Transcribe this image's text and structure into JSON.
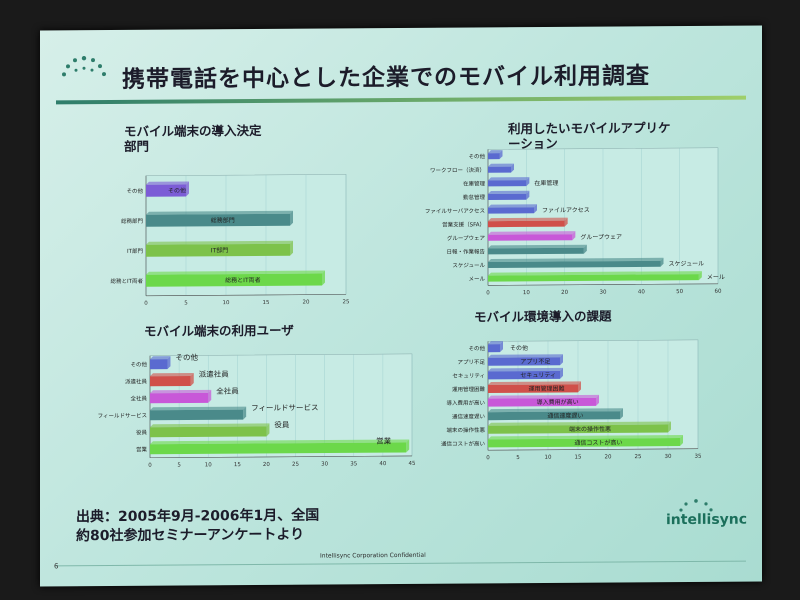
{
  "slide": {
    "title": "携帯電話を中心とした企業でのモバイル利用調査",
    "source_line1": "出典：2005年9月-2006年1月、全国",
    "source_line2": "約80社参加セミナーアンケートより",
    "brand": "intellisync",
    "footer": "Intellisync Corporation Confidential",
    "page_number": "6"
  },
  "chart_data": [
    {
      "type": "bar",
      "orientation": "horizontal",
      "title_line1": "モバイル端末の導入決定",
      "title_line2": "部門",
      "categories": [
        "その他",
        "総務部門",
        "IT部門",
        "総務とIT両者"
      ],
      "category_labels": [
        "その他",
        "総務部門",
        "IT部門",
        "総務とIT両者"
      ],
      "values": [
        5,
        18,
        18,
        22
      ],
      "colors": [
        "#7c5cd6",
        "#4a8a8a",
        "#7dc24a",
        "#6cd84a"
      ],
      "xlim": [
        0,
        25
      ],
      "xticks": [
        "0",
        "5",
        "10",
        "15",
        "20",
        "25"
      ]
    },
    {
      "type": "bar",
      "orientation": "horizontal",
      "title_line1": "利用したいモバイルアプリケ",
      "title_line2": "ーション",
      "categories": [
        "その他",
        "ワークフロー（決済）",
        "在庫管理",
        "勤怠管理",
        "ファイルサーバアクセス",
        "営業支援（SFA）",
        "グループウェア",
        "日報・作業報告",
        "スケジュール",
        "メール"
      ],
      "category_labels": [
        "",
        "",
        "在庫管理",
        "",
        "ファイルアクセス",
        "",
        "グループウェア",
        "",
        "スケジュール",
        "メール"
      ],
      "values": [
        3,
        6,
        10,
        10,
        12,
        20,
        22,
        25,
        45,
        55
      ],
      "colors": [
        "#5a6ad0",
        "#5a6ad0",
        "#5a6ad0",
        "#5a6ad0",
        "#5a6ad0",
        "#d0504a",
        "#c858d8",
        "#4a8a8a",
        "#4a8a8a",
        "#6cd84a"
      ],
      "xlim": [
        0,
        60
      ],
      "xticks": [
        "0",
        "10",
        "20",
        "30",
        "40",
        "50",
        "60"
      ]
    },
    {
      "type": "bar",
      "orientation": "horizontal",
      "title_line1": "モバイル端末の利用ユーザ",
      "title_line2": "",
      "categories": [
        "その他",
        "派遣社員",
        "全社員",
        "フィールドサービス",
        "役員",
        "営業"
      ],
      "category_labels": [
        "その他",
        "派遣社員",
        "全社員",
        "フィールドサービス",
        "役員",
        "営業"
      ],
      "values": [
        3,
        7,
        10,
        16,
        20,
        44
      ],
      "colors": [
        "#5a6ad0",
        "#d0504a",
        "#c858d8",
        "#4a8a8a",
        "#7dc24a",
        "#6cd84a"
      ],
      "xlim": [
        0,
        45
      ],
      "xticks": [
        "0",
        "5",
        "10",
        "15",
        "20",
        "25",
        "30",
        "35",
        "40",
        "45"
      ]
    },
    {
      "type": "bar",
      "orientation": "horizontal",
      "title_line1": "モバイル環境導入の課題",
      "title_line2": "",
      "categories": [
        "その他",
        "アプリ不足",
        "セキュリティ",
        "運用管理困難",
        "導入費用が高い",
        "通信速度遅い",
        "端末の操作性悪",
        "通信コストが高い"
      ],
      "category_labels": [
        "その他",
        "アプリ不足",
        "セキュリティ",
        "運用管理困難",
        "導入費用が高い",
        "通信速度遅い",
        "端末の操作性悪",
        "通信コストが高い"
      ],
      "values": [
        2,
        12,
        12,
        15,
        18,
        22,
        30,
        32
      ],
      "colors": [
        "#5a6ad0",
        "#5a6ad0",
        "#5a6ad0",
        "#d0504a",
        "#c858d8",
        "#4a8a8a",
        "#7dc24a",
        "#6cd84a"
      ],
      "xlim": [
        0,
        35
      ],
      "xticks": [
        "0",
        "5",
        "10",
        "15",
        "20",
        "25",
        "30",
        "35"
      ]
    }
  ]
}
